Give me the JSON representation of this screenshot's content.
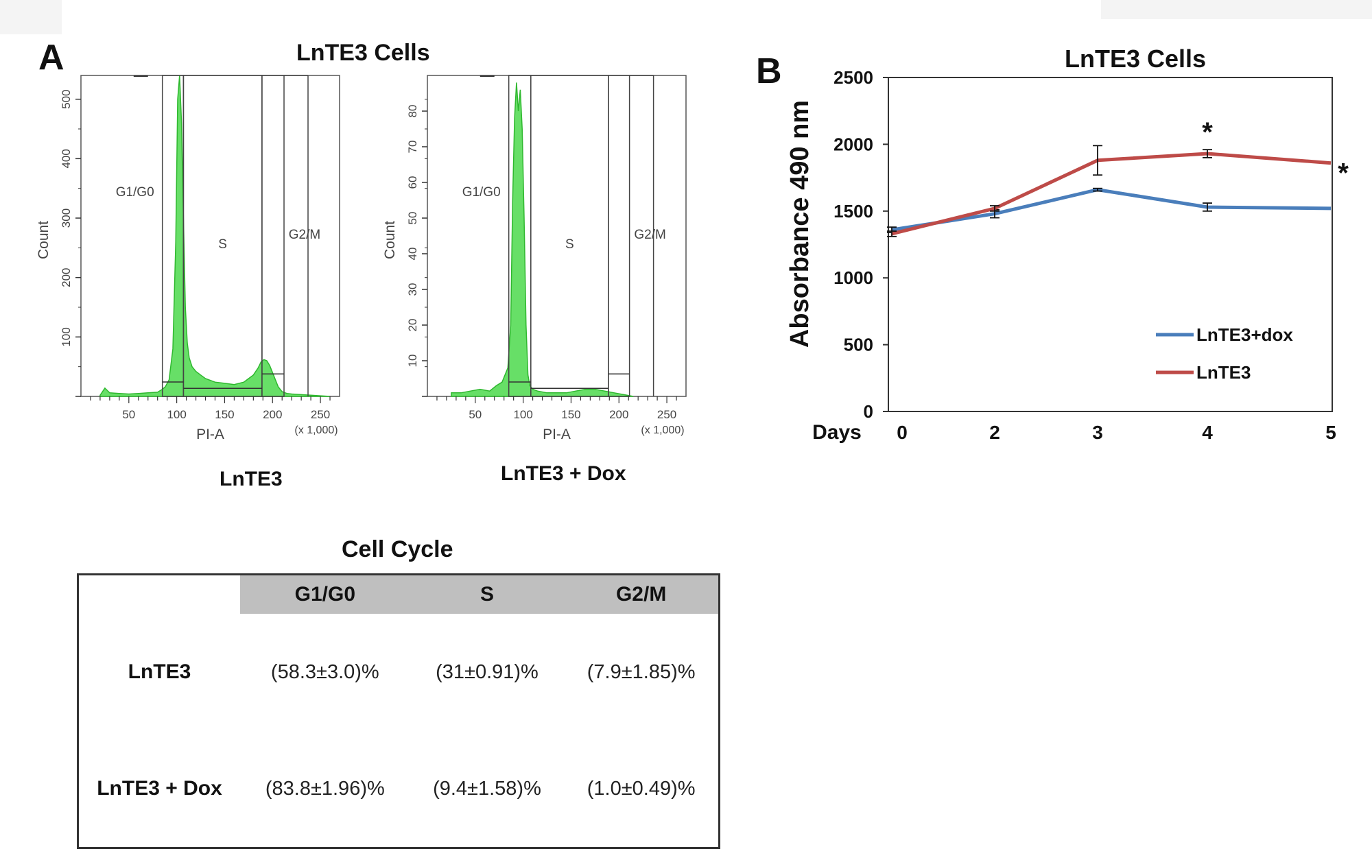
{
  "panel_a": {
    "letter": "A",
    "title": "LnTE3 Cells",
    "histograms": [
      {
        "caption": "LnTE3",
        "ylabel": "Count",
        "xlabel": "PI-A",
        "x_scale_note": "(x 1,000)",
        "y_ticks": [
          "100",
          "200",
          "300",
          "400",
          "500"
        ],
        "x_ticks": [
          "50",
          "100",
          "150",
          "200",
          "250"
        ],
        "gate_labels": [
          "G1/G0",
          "S",
          "G2/M"
        ]
      },
      {
        "caption": "LnTE3 + Dox",
        "ylabel": "Count",
        "xlabel": "PI-A",
        "x_scale_note": "(x 1,000)",
        "y_ticks": [
          "10",
          "20",
          "30",
          "40",
          "50",
          "60",
          "70",
          "80"
        ],
        "x_ticks": [
          "50",
          "100",
          "150",
          "200",
          "250"
        ],
        "gate_labels": [
          "G1/G0",
          "S",
          "G2/M"
        ]
      }
    ],
    "table": {
      "title": "Cell Cycle",
      "columns": [
        "",
        "G1/G0",
        "S",
        "G2/M"
      ],
      "rows": [
        {
          "label": "LnTE3",
          "cells": [
            "(58.3±3.0)%",
            "(31±0.91)%",
            "(7.9±1.85)%"
          ]
        },
        {
          "label": "LnTE3 + Dox",
          "cells": [
            "(83.8±1.96)%",
            "(9.4±1.58)%",
            "(1.0±0.49)%"
          ]
        }
      ]
    }
  },
  "panel_b": {
    "letter": "B",
    "x_prefix_label": "Days"
  },
  "chart_data": [
    {
      "type": "area",
      "title": "",
      "xlabel": "PI-A",
      "ylabel": "Count",
      "x_scale_note": "(x 1,000)",
      "xlim": [
        0,
        270
      ],
      "ylim": [
        0,
        540
      ],
      "color": "#4cd94c",
      "x": [
        20,
        25,
        30,
        40,
        50,
        60,
        70,
        80,
        85,
        88,
        92,
        96,
        99,
        101,
        103,
        105,
        107,
        109,
        111,
        113,
        116,
        120,
        125,
        130,
        140,
        150,
        160,
        170,
        175,
        180,
        185,
        188,
        191,
        194,
        197,
        200,
        203,
        206,
        210,
        215,
        220,
        230,
        240,
        250,
        260
      ],
      "y": [
        2,
        14,
        6,
        5,
        4,
        5,
        6,
        7,
        12,
        16,
        28,
        80,
        260,
        500,
        540,
        460,
        300,
        150,
        90,
        65,
        50,
        42,
        36,
        30,
        24,
        22,
        20,
        24,
        30,
        36,
        48,
        58,
        62,
        60,
        52,
        40,
        28,
        16,
        8,
        5,
        4,
        3,
        2,
        1,
        0
      ],
      "gates": {
        "G1/G0": [
          85,
          107
        ],
        "S": [
          107,
          189
        ],
        "G2/M": [
          189,
          212
        ]
      }
    },
    {
      "type": "area",
      "title": "",
      "xlabel": "PI-A",
      "ylabel": "Count",
      "x_scale_note": "(x 1,000)",
      "xlim": [
        0,
        270
      ],
      "ylim": [
        0,
        90
      ],
      "color": "#4cd94c",
      "x": [
        25,
        35,
        45,
        55,
        65,
        72,
        78,
        84,
        87,
        89,
        91,
        93,
        95,
        97,
        99,
        101,
        103,
        105,
        107,
        110,
        115,
        125,
        135,
        145,
        155,
        165,
        175,
        185,
        195,
        205,
        215
      ],
      "y": [
        1,
        1,
        1.5,
        2,
        1.5,
        3,
        4,
        8,
        20,
        55,
        78,
        88,
        80,
        86,
        75,
        50,
        20,
        6,
        3,
        2,
        1.5,
        1,
        1,
        1,
        1.5,
        2,
        2,
        1.5,
        1,
        0.5,
        0
      ],
      "gates": {
        "G1/G0": [
          85,
          108
        ],
        "S": [
          108,
          189
        ],
        "G2/M": [
          189,
          211
        ]
      }
    },
    {
      "type": "line",
      "title": "LnTE3 Cells",
      "xlabel": "Days",
      "ylabel": "Absorbance 490 nm",
      "categories": [
        "0",
        "2",
        "3",
        "4",
        "5"
      ],
      "ylim": [
        0,
        2500
      ],
      "y_ticks": [
        "0",
        "500",
        "1000",
        "1500",
        "2000",
        "2500"
      ],
      "legend_position": "bottom-right",
      "series": [
        {
          "name": "LnTE3+dox",
          "color": "#4a7ebb",
          "values": [
            1360,
            1480,
            1660,
            1530,
            1520
          ],
          "errors": [
            20,
            30,
            10,
            30,
            0
          ]
        },
        {
          "name": "LnTE3",
          "color": "#be4b48",
          "values": [
            1330,
            1520,
            1880,
            1930,
            1860
          ],
          "errors": [
            20,
            20,
            110,
            30,
            0
          ]
        }
      ],
      "annotations": [
        {
          "label": "*",
          "category": "4"
        },
        {
          "label": "*",
          "category": "5"
        }
      ]
    }
  ]
}
